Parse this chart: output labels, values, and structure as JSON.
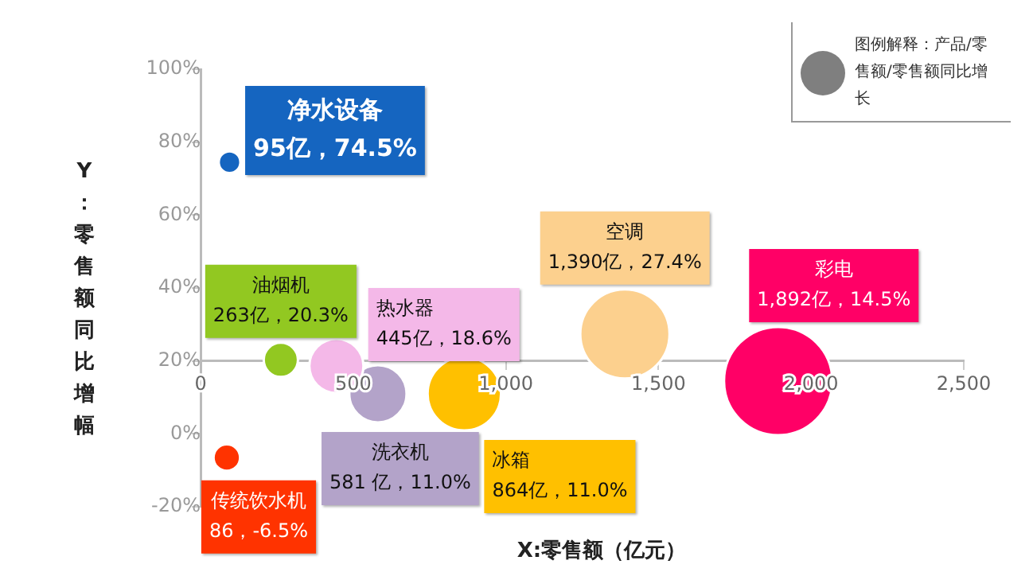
{
  "chart_data": {
    "type": "bubble",
    "xlabel": "X:零售额（亿元）",
    "ylabel": "Y：零售额同比增幅",
    "xlim": [
      0,
      2500
    ],
    "ylim": [
      -20,
      100
    ],
    "xticks": [
      0,
      500,
      {
        "value": 1000,
        "label": "1,000"
      },
      {
        "value": 1500,
        "label": "1,500"
      },
      {
        "value": 2000,
        "label": "2,000"
      },
      {
        "value": 2500,
        "label": "2,500"
      }
    ],
    "yticks": [
      {
        "value": -20,
        "label": "-20%"
      },
      {
        "value": 0,
        "label": "0%"
      },
      {
        "value": 20,
        "label": "20%"
      },
      {
        "value": 40,
        "label": "40%"
      },
      {
        "value": 60,
        "label": "60%"
      },
      {
        "value": 80,
        "label": "80%"
      },
      {
        "value": 100,
        "label": "100%"
      }
    ],
    "grid": false,
    "annotations": [
      "图例解释：产品/零售额/零售额同比增长"
    ],
    "series": [
      {
        "name": "净水设备",
        "color": "#1565c0",
        "x": [
          95
        ],
        "values": [
          74.5
        ],
        "sizes": [
          0.04
        ],
        "value_labels": [
          "95亿，74.5%"
        ]
      },
      {
        "name": "热水器",
        "color": "#f4b8e8",
        "x": [
          445
        ],
        "values": [
          18.6
        ],
        "sizes": [
          0.25
        ],
        "value_labels": [
          "445亿，18.6%"
        ]
      },
      {
        "name": "油烟机",
        "color": "#92c821",
        "x": [
          263
        ],
        "values": [
          20.3
        ],
        "sizes": [
          0.1
        ],
        "value_labels": [
          "263亿，20.3%"
        ]
      },
      {
        "name": "传统饮水机",
        "color": "#ff3300",
        "x": [
          86
        ],
        "values": [
          -6.5
        ],
        "sizes": [
          0.06
        ],
        "value_labels": [
          "86，-6.5%"
        ]
      },
      {
        "name": "洗衣机",
        "color": "#b3a3c9",
        "x": [
          581
        ],
        "values": [
          11.0
        ],
        "sizes": [
          0.28
        ],
        "value_labels": [
          "581 亿，11.0%"
        ]
      },
      {
        "name": "冰箱",
        "color": "#ffc000",
        "x": [
          864
        ],
        "values": [
          11.0
        ],
        "sizes": [
          0.46
        ],
        "value_labels": [
          "864亿，11.0%"
        ]
      },
      {
        "name": "空调",
        "color": "#fcd08e",
        "x": [
          1390
        ],
        "values": [
          27.4
        ],
        "sizes": [
          0.68
        ],
        "value_labels": [
          "1,390亿，27.4%"
        ]
      },
      {
        "name": "彩电",
        "color": "#ff0066",
        "x": [
          1892
        ],
        "values": [
          14.5
        ],
        "sizes": [
          1
        ],
        "value_labels": [
          "1,892亿，14.5%"
        ]
      }
    ]
  }
}
